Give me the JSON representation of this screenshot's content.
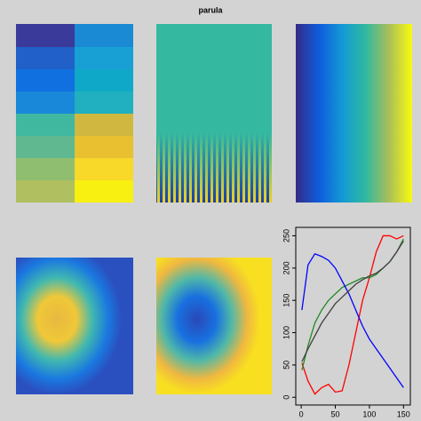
{
  "chart_data": {
    "type": "line",
    "title": "parula",
    "x": [
      1,
      10,
      20,
      30,
      40,
      50,
      60,
      70,
      80,
      90,
      100,
      110,
      120,
      130,
      140,
      150
    ],
    "series": [
      {
        "color": "#ff0000",
        "values": [
          53,
          25,
          5,
          15,
          20,
          8,
          10,
          50,
          100,
          150,
          185,
          225,
          250,
          250,
          245,
          250
        ]
      },
      {
        "color": "#228b22",
        "values": [
          42,
          80,
          115,
          135,
          150,
          160,
          170,
          175,
          180,
          185,
          185,
          190,
          200,
          210,
          225,
          245
        ]
      },
      {
        "color": "#0000ff",
        "values": [
          135,
          205,
          222,
          218,
          212,
          200,
          180,
          160,
          135,
          110,
          90,
          75,
          60,
          45,
          30,
          15
        ]
      },
      {
        "color": "#404040",
        "values": [
          55,
          75,
          95,
          115,
          130,
          145,
          155,
          165,
          175,
          182,
          188,
          192,
          200,
          210,
          225,
          242
        ]
      }
    ],
    "xlim": [
      -8,
      160
    ],
    "ylim": [
      -12,
      263
    ],
    "xticks": [
      0,
      50,
      100,
      150
    ],
    "yticks": [
      0,
      50,
      100,
      150,
      200,
      250
    ]
  }
}
